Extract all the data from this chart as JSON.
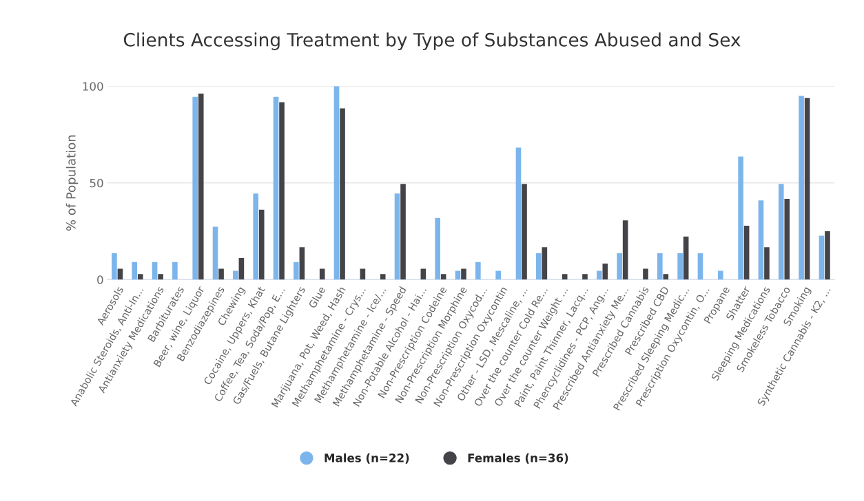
{
  "chart_data": {
    "type": "bar",
    "title": "Clients Accessing Treatment by Type of Substances Abused and Sex",
    "ylabel": "% of Population",
    "categories": [
      "Aerosols",
      "Anabolic Steroids, Anti-In...",
      "Antianxiety Medications",
      "Barbiturates",
      "Beer, wine, Liquor",
      "Benzodiazepines",
      "Chewing",
      "Cocaine, Uppers, Khat",
      "Coffee, Tea, Soda/Pop, E...",
      "Gas/Fuels, Butane Lighters",
      "Glue",
      "Marijuana, Pot, Weed, Hash",
      "Methamphetamine - Crys...",
      "Methamphetamine - Ice/...",
      "Methamphetamine - Speed",
      "Non-Potable Alcohol - Hai...",
      "Non-Prescription Codeine",
      "Non-Prescription Morphine",
      "Non-Prescription Oxycod...",
      "Non-Prescription Oxycontin",
      "Other - LSD, Mescaline, ...",
      "Over the counter Cold Re...",
      "Over the counter Weight ...",
      "Paint, Paint Thinner, Lacq...",
      "Phencyclidines - PCP, Ang...",
      "Prescribed Antianxiety Me...",
      "Prescribed Cannabis",
      "Prescribed CBD",
      "Prescribed Sleeping Medic...",
      "Prescription Oxycontin, O...",
      "Propane",
      "Shatter",
      "Sleeping Medications",
      "Smokeless Tobacco",
      "Smoking",
      "Synthetic Cannabis - K2, ..."
    ],
    "series": [
      {
        "name": "Males (n=22)",
        "color": "#7cb5ec",
        "values": [
          13.6,
          9.1,
          9.1,
          9.1,
          94.5,
          27.3,
          4.5,
          44.5,
          94.5,
          9.1,
          0,
          100,
          0,
          0,
          44.5,
          0,
          31.8,
          4.5,
          9.1,
          4.5,
          68.2,
          13.6,
          0,
          0,
          4.5,
          13.6,
          0,
          13.6,
          13.6,
          13.6,
          4.5,
          63.6,
          40.9,
          49.5,
          95,
          22.7
        ]
      },
      {
        "name": "Females (n=36)",
        "color": "#434348",
        "values": [
          5.6,
          2.8,
          2.8,
          0,
          96.2,
          5.6,
          11.1,
          36.1,
          91.7,
          16.7,
          5.6,
          88.5,
          5.6,
          2.8,
          49.5,
          5.6,
          2.8,
          5.6,
          0,
          0,
          49.5,
          16.7,
          2.8,
          2.8,
          8.3,
          30.6,
          5.6,
          2.8,
          22.2,
          0,
          0,
          27.8,
          16.7,
          41.7,
          93.9,
          25
        ]
      }
    ],
    "ylim": [
      0,
      100
    ],
    "yticks": [
      0,
      50,
      100
    ],
    "grid": "y",
    "legend": "bottom"
  }
}
